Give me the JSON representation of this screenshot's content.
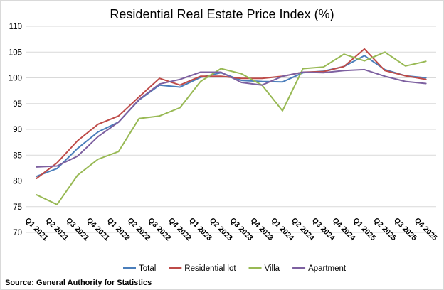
{
  "chart_data": {
    "type": "line",
    "title": "Residential Real Estate Price Index (%)",
    "xlabel": "",
    "ylabel": "",
    "ylim": [
      70,
      110
    ],
    "yticks": [
      70,
      75,
      80,
      85,
      90,
      95,
      100,
      105,
      110
    ],
    "grid": true,
    "legend_position": "bottom",
    "categories": [
      "Q1 2021",
      "Q2 2021",
      "Q3 2021",
      "Q4 2021",
      "Q1 2022",
      "Q2 2022",
      "Q3 2022",
      "Q4 2022",
      "Q1 2023",
      "Q2 2023",
      "Q3 2023",
      "Q4 2023",
      "Q1 2024",
      "Q2 2024",
      "Q3 2024",
      "Q4 2024",
      "Q1 2025",
      "Q2 2025",
      "Q3 2025",
      "Q4 2025"
    ],
    "series": [
      {
        "name": "Total",
        "color": "#4a7ebb",
        "values": [
          80.9,
          82.4,
          86.3,
          89.5,
          91.4,
          95.7,
          98.6,
          98.2,
          100.1,
          101.0,
          99.5,
          99.3,
          99.2,
          101.0,
          101.3,
          102.2,
          104.3,
          101.6,
          100.4,
          100.0
        ]
      },
      {
        "name": "Residential lot",
        "color": "#be4b48",
        "values": [
          80.5,
          83.5,
          87.8,
          91.0,
          92.6,
          96.3,
          99.9,
          98.6,
          100.3,
          100.3,
          99.9,
          99.9,
          100.3,
          101.1,
          101.2,
          102.2,
          105.6,
          101.4,
          100.4,
          99.7
        ]
      },
      {
        "name": "Villa",
        "color": "#98b954",
        "values": [
          77.3,
          75.4,
          81.1,
          84.2,
          85.7,
          92.1,
          92.6,
          94.2,
          99.3,
          101.8,
          100.8,
          98.6,
          93.6,
          101.8,
          102.1,
          104.6,
          103.3,
          105.0,
          102.3,
          103.2
        ]
      },
      {
        "name": "Apartment",
        "color": "#7d60a0",
        "values": [
          82.7,
          82.9,
          84.8,
          88.6,
          91.4,
          95.8,
          98.8,
          99.7,
          101.1,
          101.1,
          99.1,
          98.6,
          100.3,
          101.1,
          101.0,
          101.4,
          101.6,
          100.3,
          99.3,
          98.9
        ]
      }
    ],
    "source": "Source: General Authority for Statistics"
  }
}
